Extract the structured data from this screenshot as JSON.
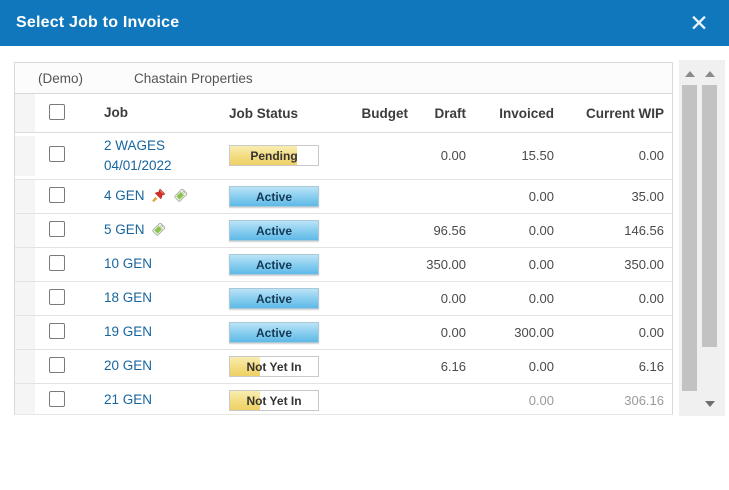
{
  "dialog": {
    "title": "Select Job to Invoice",
    "close_icon": "✕"
  },
  "group": {
    "demo_label": "(Demo)",
    "company": "Chastain Properties"
  },
  "table": {
    "columns": {
      "job": "Job",
      "status": "Job Status",
      "budget": "Budget",
      "draft": "Draft",
      "invoiced": "Invoiced",
      "wip": "Current WIP"
    },
    "rows": [
      {
        "job": "2 WAGES 04/01/2022",
        "status": {
          "label": "Pending",
          "style": "pending",
          "fill_pct": 76
        },
        "budget": "",
        "draft": "0.00",
        "invoiced": "15.50",
        "wip": "0.00",
        "icons": [],
        "muted": false
      },
      {
        "job": "4 GEN",
        "status": {
          "label": "Active",
          "style": "active"
        },
        "budget": "",
        "draft": "",
        "invoiced": "0.00",
        "wip": "35.00",
        "icons": [
          "pushpin-icon",
          "tag-icon"
        ],
        "muted": false
      },
      {
        "job": "5 GEN",
        "status": {
          "label": "Active",
          "style": "active"
        },
        "budget": "",
        "draft": "96.56",
        "invoiced": "0.00",
        "wip": "146.56",
        "icons": [
          "tag-icon"
        ],
        "muted": false
      },
      {
        "job": "10 GEN",
        "status": {
          "label": "Active",
          "style": "active"
        },
        "budget": "",
        "draft": "350.00",
        "invoiced": "0.00",
        "wip": "350.00",
        "icons": [],
        "muted": false
      },
      {
        "job": "18 GEN",
        "status": {
          "label": "Active",
          "style": "active"
        },
        "budget": "",
        "draft": "0.00",
        "invoiced": "0.00",
        "wip": "0.00",
        "icons": [],
        "muted": false
      },
      {
        "job": "19 GEN",
        "status": {
          "label": "Active",
          "style": "active"
        },
        "budget": "",
        "draft": "0.00",
        "invoiced": "300.00",
        "wip": "0.00",
        "icons": [],
        "muted": false
      },
      {
        "job": "20 GEN",
        "status": {
          "label": "Not Yet In",
          "style": "not-yet-in",
          "fill_pct": 34
        },
        "budget": "",
        "draft": "6.16",
        "invoiced": "0.00",
        "wip": "6.16",
        "icons": [],
        "muted": false
      },
      {
        "job": "21 GEN",
        "status": {
          "label": "Not Yet In",
          "style": "not-yet-in",
          "fill_pct": 34
        },
        "budget": "",
        "draft": "",
        "invoiced": "0.00",
        "wip": "306.16",
        "icons": [],
        "muted": true
      }
    ]
  },
  "colors": {
    "titlebar_blue": "#1177bd",
    "job_link_blue": "#17659f",
    "active_badge_blue": "#5fb9e8",
    "status_yellow": "#eed066",
    "row_border": "#e3e3e3",
    "scroll_thumb": "#c2c2c2"
  }
}
